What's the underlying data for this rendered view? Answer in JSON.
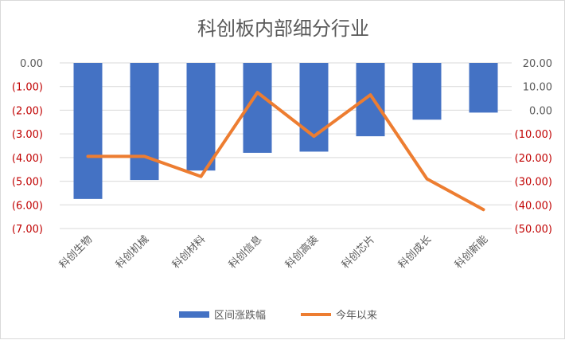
{
  "chart_data": {
    "type": "bar",
    "title": "科创板内部细分行业",
    "categories": [
      "科创生物",
      "科创机械",
      "科创材料",
      "科创信息",
      "科创高装",
      "科创芯片",
      "科创成长",
      "科创新能"
    ],
    "series": [
      {
        "name": "区间涨跌幅",
        "type": "bar",
        "axis": "left",
        "color": "#4472C4",
        "values": [
          -5.75,
          -4.95,
          -4.55,
          -3.8,
          -3.75,
          -3.1,
          -2.4,
          -2.1
        ]
      },
      {
        "name": "今年以来",
        "type": "line",
        "axis": "right",
        "color": "#ED7D31",
        "values": [
          -19.5,
          -19.5,
          -28.0,
          7.5,
          -11.0,
          6.5,
          -29.0,
          -42.0
        ]
      }
    ],
    "y_left": {
      "min": -7,
      "max": 0,
      "step": 1,
      "tick_labels": [
        "0.00",
        "(1.00)",
        "(2.00)",
        "(3.00)",
        "(4.00)",
        "(5.00)",
        "(6.00)",
        "(7.00)"
      ]
    },
    "y_right": {
      "min": -50,
      "max": 20,
      "step": 10,
      "tick_labels": [
        "20.00",
        "10.00",
        "0.00",
        "(10.00)",
        "(20.00)",
        "(30.00)",
        "(40.00)",
        "(50.00)"
      ]
    },
    "negative_label_color": "#C00000",
    "positive_label_color": "#595959",
    "gridlines": true,
    "legend_position": "bottom"
  }
}
